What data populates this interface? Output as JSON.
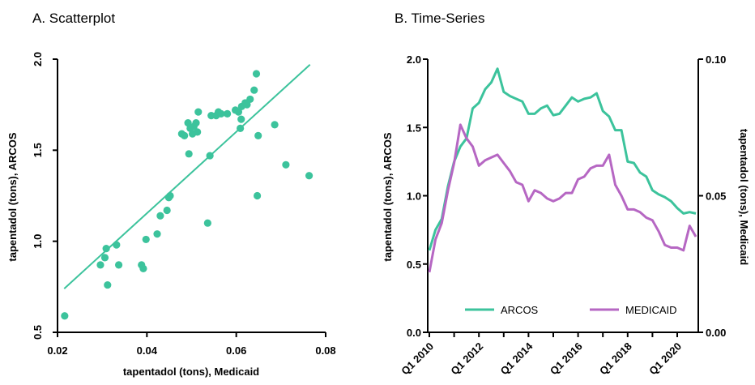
{
  "chart_data": [
    {
      "type": "scatter",
      "title": "A. Scatterplot",
      "xlabel": "tapentadol (tons), Medicaid",
      "ylabel": "tapentadol (tons), ARCOS",
      "xlim": [
        0.02,
        0.08
      ],
      "ylim": [
        0.5,
        2.0
      ],
      "xticks": [
        "0.02",
        "0.04",
        "0.06",
        "0.08"
      ],
      "yticks": [
        "0.5",
        "1.0",
        "1.5",
        "2.0"
      ],
      "color": "#3cc39c",
      "fit_line": {
        "x": [
          0.0215,
          0.0765
        ],
        "y": [
          0.74,
          1.97
        ]
      },
      "points": [
        [
          0.0216,
          0.59
        ],
        [
          0.0296,
          0.87
        ],
        [
          0.0306,
          0.91
        ],
        [
          0.0309,
          0.96
        ],
        [
          0.0312,
          0.76
        ],
        [
          0.0332,
          0.98
        ],
        [
          0.0337,
          0.87
        ],
        [
          0.0388,
          0.87
        ],
        [
          0.0392,
          0.85
        ],
        [
          0.0398,
          1.01
        ],
        [
          0.0423,
          1.04
        ],
        [
          0.043,
          1.14
        ],
        [
          0.0445,
          1.17
        ],
        [
          0.0449,
          1.24
        ],
        [
          0.0452,
          1.25
        ],
        [
          0.0478,
          1.59
        ],
        [
          0.0484,
          1.58
        ],
        [
          0.0492,
          1.65
        ],
        [
          0.0494,
          1.48
        ],
        [
          0.0497,
          1.62
        ],
        [
          0.0502,
          1.59
        ],
        [
          0.0505,
          1.63
        ],
        [
          0.051,
          1.65
        ],
        [
          0.0513,
          1.6
        ],
        [
          0.0515,
          1.71
        ],
        [
          0.0536,
          1.1
        ],
        [
          0.0541,
          1.47
        ],
        [
          0.0544,
          1.69
        ],
        [
          0.0555,
          1.69
        ],
        [
          0.056,
          1.71
        ],
        [
          0.0566,
          1.7
        ],
        [
          0.058,
          1.7
        ],
        [
          0.0598,
          1.72
        ],
        [
          0.0605,
          1.71
        ],
        [
          0.0609,
          1.62
        ],
        [
          0.0611,
          1.67
        ],
        [
          0.0612,
          1.74
        ],
        [
          0.062,
          1.76
        ],
        [
          0.0624,
          1.75
        ],
        [
          0.0631,
          1.78
        ],
        [
          0.064,
          1.83
        ],
        [
          0.0645,
          1.92
        ],
        [
          0.0647,
          1.25
        ],
        [
          0.0649,
          1.58
        ],
        [
          0.0686,
          1.64
        ],
        [
          0.0711,
          1.42
        ],
        [
          0.0763,
          1.36
        ]
      ]
    },
    {
      "type": "line",
      "title": "B. Time-Series",
      "ylabel": "tapentadol (tons), ARCOS",
      "y2label": "tapentadol (tons), Medicaid",
      "ylim": [
        0.0,
        2.0
      ],
      "y2lim": [
        0.0,
        0.1
      ],
      "yticks": [
        "0.0",
        "0.5",
        "1.0",
        "1.5",
        "2.0"
      ],
      "y2ticks": [
        "0.00",
        "0.05",
        "0.10"
      ],
      "xticks": [
        "Q1 2010",
        "Q1 2012",
        "Q1 2014",
        "Q1 2016",
        "Q1 2018",
        "Q1 2020"
      ],
      "x_quarter_start": "Q1 2010",
      "series": [
        {
          "name": "ARCOS",
          "color": "#3cc39c",
          "axis": "left",
          "values": [
            0.6,
            0.75,
            0.83,
            1.07,
            1.25,
            1.36,
            1.42,
            1.64,
            1.68,
            1.78,
            1.83,
            1.93,
            1.76,
            1.73,
            1.71,
            1.69,
            1.6,
            1.6,
            1.64,
            1.66,
            1.59,
            1.6,
            1.66,
            1.72,
            1.69,
            1.71,
            1.72,
            1.75,
            1.62,
            1.58,
            1.48,
            1.48,
            1.25,
            1.24,
            1.17,
            1.14,
            1.04,
            1.01,
            0.99,
            0.96,
            0.91,
            0.87,
            0.88,
            0.87
          ]
        },
        {
          "name": "MEDICAID",
          "color": "#b667c3",
          "axis": "right",
          "values": [
            0.022,
            0.034,
            0.04,
            0.052,
            0.062,
            0.076,
            0.071,
            0.068,
            0.061,
            0.063,
            0.064,
            0.065,
            0.062,
            0.059,
            0.055,
            0.054,
            0.048,
            0.052,
            0.051,
            0.049,
            0.048,
            0.049,
            0.051,
            0.051,
            0.056,
            0.057,
            0.06,
            0.061,
            0.061,
            0.065,
            0.054,
            0.05,
            0.045,
            0.045,
            0.044,
            0.042,
            0.041,
            0.037,
            0.032,
            0.031,
            0.031,
            0.03,
            0.039,
            0.035
          ]
        }
      ],
      "legend_placement": "bottom"
    }
  ]
}
